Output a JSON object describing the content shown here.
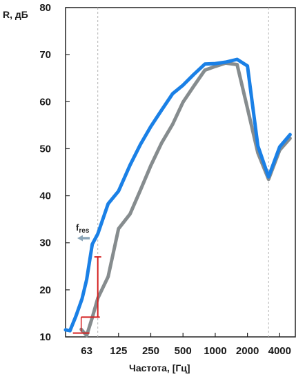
{
  "chart_data": {
    "type": "line",
    "ylabel": "R, дБ",
    "xlabel": "Частота,  [Гц]",
    "y_ticks": [
      "10",
      "20",
      "30",
      "40",
      "50",
      "60",
      "70",
      "80"
    ],
    "ylim": [
      10,
      80
    ],
    "x_ticks": [
      "63",
      "125",
      "250",
      "500",
      "1000",
      "2000",
      "4000"
    ],
    "x_scale": "log",
    "xlim": [
      40,
      5600
    ],
    "grid": false,
    "colors": {
      "series_1": "#1a80e6",
      "series_2": "#868c8e",
      "marker": "#d41f1f",
      "arrow": "#8aa5b8",
      "vline": "#b3b3b3"
    },
    "series": [
      {
        "color": "#1a80e6",
        "x": [
          40,
          44,
          50,
          57,
          63,
          71,
          80,
          100,
          125,
          160,
          200,
          250,
          315,
          400,
          500,
          630,
          800,
          1000,
          1250,
          1600,
          2000,
          2500,
          3150,
          4000,
          5000
        ],
        "y": [
          11.5,
          11.3,
          14.4,
          18.1,
          22.2,
          29.7,
          31.9,
          38.3,
          41,
          46.5,
          50.9,
          54.7,
          58.2,
          61.7,
          63.5,
          65.8,
          68,
          68.1,
          68.4,
          69,
          67.6,
          50.6,
          44,
          50.4,
          53
        ]
      },
      {
        "color": "#868c8e",
        "x": [
          56,
          63,
          71,
          80,
          100,
          125,
          160,
          200,
          250,
          315,
          400,
          500,
          630,
          800,
          1000,
          1250,
          1600,
          2000,
          2500,
          3150,
          4000,
          5000
        ],
        "y": [
          11.6,
          10.3,
          14.1,
          18.2,
          22.8,
          33,
          36.1,
          41.2,
          46.4,
          51.2,
          55.2,
          59.9,
          63.3,
          66.7,
          67.5,
          68.2,
          67.9,
          58.6,
          49.1,
          43.5,
          49.7,
          52.2
        ]
      }
    ],
    "vertical_lines_x": [
      80,
      3150
    ],
    "annotations": {
      "fres_label": "f",
      "fres_sub": "res",
      "marker_x": [
        56,
        80
      ],
      "marker_x_low": 56,
      "marker_y": [
        10.8,
        14.2,
        27
      ]
    }
  }
}
